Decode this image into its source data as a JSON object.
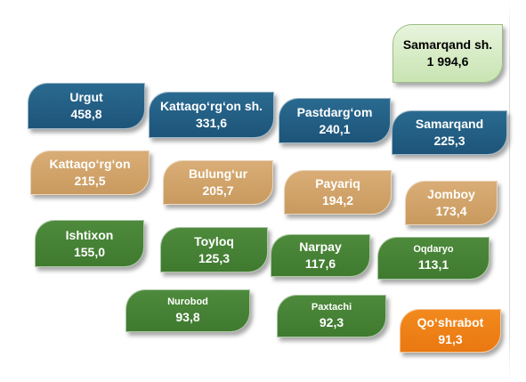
{
  "tiles": [
    {
      "name": "Samarqand sh.",
      "value": "1 994,6",
      "color": "light"
    },
    {
      "name": "Urgut",
      "value": "458,8",
      "color": "blue"
    },
    {
      "name": "Kattaqo‘rg‘on sh.",
      "value": "331,6",
      "color": "blue"
    },
    {
      "name": "Pastdarg‘om",
      "value": "240,1",
      "color": "blue"
    },
    {
      "name": "Samarqand",
      "value": "225,3",
      "color": "blue"
    },
    {
      "name": "Kattaqo‘rg‘on",
      "value": "215,5",
      "color": "tan"
    },
    {
      "name": "Bulung‘ur",
      "value": "205,7",
      "color": "tan"
    },
    {
      "name": "Payariq",
      "value": "194,2",
      "color": "tan"
    },
    {
      "name": "Jomboy",
      "value": "173,4",
      "color": "tan"
    },
    {
      "name": "Ishtixon",
      "value": "155,0",
      "color": "green"
    },
    {
      "name": "Toyloq",
      "value": "125,3",
      "color": "green"
    },
    {
      "name": "Narpay",
      "value": "117,6",
      "color": "green"
    },
    {
      "name": "Oqdaryo",
      "value": "113,1",
      "color": "green"
    },
    {
      "name": "Nurobod",
      "value": "93,8",
      "color": "green"
    },
    {
      "name": "Paxtachi",
      "value": "92,3",
      "color": "green"
    },
    {
      "name": "Qo‘shrabot",
      "value": "91,3",
      "color": "orange"
    }
  ],
  "colors": {
    "blue": "#1f5a80",
    "tan": "#d1a36a",
    "green": "#44822f",
    "orange": "#f08015",
    "light": "#d9edc8"
  }
}
